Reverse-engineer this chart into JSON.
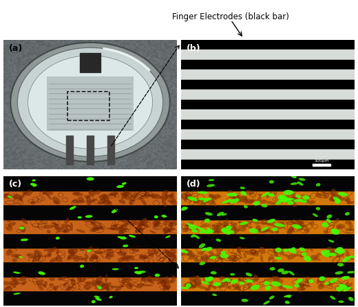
{
  "title_annotation": "Finger Electrodes (black bar)",
  "label_a": "(a)",
  "label_b": "(b)",
  "label_c": "(c)",
  "label_d": "(d)",
  "scale_bar_text": "100μm",
  "fig_width": 5.2,
  "fig_height": 4.46,
  "bg_color": "#ffffff",
  "panel_a_bg": "#7a8a8a",
  "panel_b_black": "#000000",
  "panel_b_white": "#d8dcd8",
  "panel_b_n_black": 7,
  "panel_b_n_white": 6,
  "panel_c_bg": "#000000",
  "panel_c_cell_color": "#c8641a",
  "panel_c_cell_dark": "#7a2800",
  "panel_c_green": "#44ff00",
  "panel_d_bg": "#000000",
  "panel_d_cell_color": "#d4780a",
  "panel_d_cell_dark": "#8a3800",
  "panel_d_green": "#44ff00",
  "arrow_color": "#000000",
  "dashed_rect_color": "#111111",
  "label_color_dark": "#000000",
  "label_color_light": "#ffffff"
}
